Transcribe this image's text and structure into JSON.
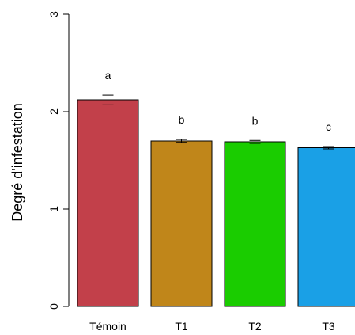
{
  "chart_data": {
    "type": "bar",
    "title": "",
    "xlabel": "",
    "ylabel": "Degré d'infestation",
    "ylim": [
      0,
      3
    ],
    "yticks": [
      "0",
      "1",
      "2",
      "3"
    ],
    "grid": false,
    "categories": [
      "Témoin",
      "T1",
      "T2",
      "T3"
    ],
    "values": [
      2.12,
      1.7,
      1.69,
      1.63
    ],
    "errors": [
      0.05,
      0.015,
      0.015,
      0.012
    ],
    "significance_labels": [
      "a",
      "b",
      "b",
      "c"
    ],
    "colors": [
      "#C2404A",
      "#C0861A",
      "#1ACC00",
      "#1AA0E6"
    ]
  }
}
